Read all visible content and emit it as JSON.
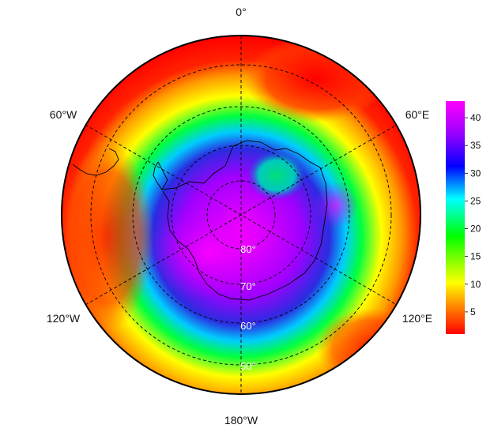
{
  "map": {
    "projection": "south-polar-stereographic",
    "longitude_labels": [
      {
        "id": "lon-0",
        "text": "0°"
      },
      {
        "id": "lon-60e",
        "text": "60°E"
      },
      {
        "id": "lon-120e",
        "text": "120°E"
      },
      {
        "id": "lon-180w",
        "text": "180°W"
      },
      {
        "id": "lon-120w",
        "text": "120°W"
      },
      {
        "id": "lon-60w",
        "text": "60°W"
      }
    ],
    "latitude_labels": [
      {
        "id": "lat-80",
        "text": "80°"
      },
      {
        "id": "lat-70",
        "text": "70°"
      },
      {
        "id": "lat-60",
        "text": "60°"
      },
      {
        "id": "lat-50",
        "text": "50°"
      }
    ],
    "gridlines": "dashed",
    "coastlines": "Antarctica, South America tip",
    "colors": {
      "outline": "#000000",
      "grid": "#000000",
      "coast": "#000000"
    }
  },
  "colorbar": {
    "ticks": [
      "5",
      "10",
      "15",
      "20",
      "25",
      "30",
      "35",
      "40"
    ],
    "tick_values": [
      5,
      10,
      15,
      20,
      25,
      30,
      35,
      40
    ],
    "range": [
      1,
      43
    ],
    "colors": [
      "#ff0000",
      "#ffcc00",
      "#ffff00",
      "#00ff00",
      "#00ffff",
      "#0000ff",
      "#9900ff",
      "#ff00ff"
    ]
  }
}
